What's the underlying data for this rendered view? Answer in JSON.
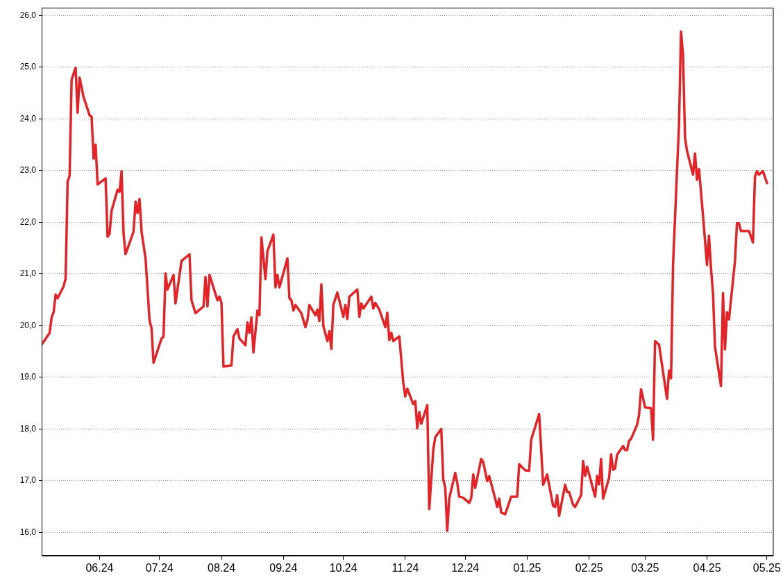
{
  "chart_data": {
    "type": "line",
    "x": [
      "2024-05-03",
      "2024-05-07",
      "2024-05-08",
      "2024-05-09",
      "2024-05-10",
      "2024-05-11",
      "2024-05-14",
      "2024-05-15",
      "2024-05-16",
      "2024-05-17",
      "2024-05-18",
      "2024-05-20",
      "2024-05-21",
      "2024-05-22",
      "2024-05-24",
      "2024-05-27",
      "2024-05-28",
      "2024-05-29",
      "2024-05-30",
      "2024-05-31",
      "2024-06-04",
      "2024-06-05",
      "2024-06-06",
      "2024-06-07",
      "2024-06-10",
      "2024-06-11",
      "2024-06-12",
      "2024-06-13",
      "2024-06-14",
      "2024-06-18",
      "2024-06-19",
      "2024-06-20",
      "2024-06-21",
      "2024-06-22",
      "2024-06-24",
      "2024-06-25",
      "2024-06-26",
      "2024-06-27",
      "2024-06-28",
      "2024-07-02",
      "2024-07-03",
      "2024-07-04",
      "2024-07-05",
      "2024-07-08",
      "2024-07-09",
      "2024-07-12",
      "2024-07-16",
      "2024-07-17",
      "2024-07-19",
      "2024-07-23",
      "2024-07-24",
      "2024-07-25",
      "2024-07-26",
      "2024-07-30",
      "2024-07-31",
      "2024-08-01",
      "2024-08-02",
      "2024-08-06",
      "2024-08-07",
      "2024-08-09",
      "2024-08-10",
      "2024-08-13",
      "2024-08-14",
      "2024-08-15",
      "2024-08-16",
      "2024-08-17",
      "2024-08-19",
      "2024-08-20",
      "2024-08-21",
      "2024-08-23",
      "2024-08-24",
      "2024-08-27",
      "2024-08-28",
      "2024-08-29",
      "2024-08-30",
      "2024-09-03",
      "2024-09-04",
      "2024-09-05",
      "2024-09-06",
      "2024-09-07",
      "2024-09-10",
      "2024-09-12",
      "2024-09-13",
      "2024-09-14",
      "2024-09-17",
      "2024-09-18",
      "2024-09-19",
      "2024-09-20",
      "2024-09-21",
      "2024-09-23",
      "2024-09-24",
      "2024-09-25",
      "2024-09-26",
      "2024-09-28",
      "2024-10-01",
      "2024-10-02",
      "2024-10-03",
      "2024-10-04",
      "2024-10-08",
      "2024-10-09",
      "2024-10-10",
      "2024-10-11",
      "2024-10-15",
      "2024-10-16",
      "2024-10-17",
      "2024-10-19",
      "2024-10-22",
      "2024-10-23",
      "2024-10-24",
      "2024-10-25",
      "2024-10-26",
      "2024-10-29",
      "2024-10-31",
      "2024-11-01",
      "2024-11-02",
      "2024-11-05",
      "2024-11-06",
      "2024-11-07",
      "2024-11-08",
      "2024-11-09",
      "2024-11-12",
      "2024-11-13",
      "2024-11-15",
      "2024-11-16",
      "2024-11-19",
      "2024-11-20",
      "2024-11-21",
      "2024-11-22",
      "2024-11-23",
      "2024-11-26",
      "2024-11-27",
      "2024-11-28",
      "2024-11-30",
      "2024-12-03",
      "2024-12-04",
      "2024-12-05",
      "2024-12-06",
      "2024-12-09",
      "2024-12-10",
      "2024-12-12",
      "2024-12-13",
      "2024-12-16",
      "2024-12-17",
      "2024-12-18",
      "2024-12-19",
      "2024-12-21",
      "2024-12-24",
      "2024-12-27",
      "2024-12-28",
      "2024-12-31",
      "2025-01-02",
      "2025-01-03",
      "2025-01-07",
      "2025-01-09",
      "2025-01-11",
      "2025-01-14",
      "2025-01-15",
      "2025-01-16",
      "2025-01-17",
      "2025-01-20",
      "2025-01-21",
      "2025-01-22",
      "2025-01-24",
      "2025-01-25",
      "2025-01-28",
      "2025-01-29",
      "2025-01-30",
      "2025-01-31",
      "2025-02-04",
      "2025-02-05",
      "2025-02-06",
      "2025-02-07",
      "2025-02-08",
      "2025-02-11",
      "2025-02-12",
      "2025-02-13",
      "2025-02-14",
      "2025-02-15",
      "2025-02-18",
      "2025-02-19",
      "2025-02-20",
      "2025-02-21",
      "2025-02-22",
      "2025-02-25",
      "2025-02-26",
      "2025-02-27",
      "2025-03-01",
      "2025-03-04",
      "2025-03-05",
      "2025-03-06",
      "2025-03-08",
      "2025-03-12",
      "2025-03-13",
      "2025-03-14",
      "2025-03-15",
      "2025-03-17",
      "2025-03-18",
      "2025-03-19",
      "2025-03-20",
      "2025-03-21",
      "2025-03-22",
      "2025-03-25",
      "2025-03-26",
      "2025-03-27",
      "2025-03-28",
      "2025-03-30",
      "2025-04-01",
      "2025-04-02",
      "2025-04-03",
      "2025-04-04",
      "2025-04-05",
      "2025-04-08",
      "2025-04-09",
      "2025-04-10",
      "2025-04-11",
      "2025-04-12",
      "2025-04-15",
      "2025-04-16",
      "2025-04-17",
      "2025-04-18",
      "2025-04-22",
      "2025-04-24",
      "2025-04-25",
      "2025-04-26",
      "2025-04-27",
      "2025-04-29",
      "2025-05-01"
    ],
    "series": [
      {
        "color": "#e52225",
        "values": [
          19.63,
          19.86,
          20.16,
          20.26,
          20.6,
          20.53,
          20.76,
          20.91,
          22.79,
          22.9,
          24.76,
          24.99,
          24.12,
          24.8,
          24.42,
          24.07,
          24.04,
          23.23,
          23.5,
          22.73,
          22.85,
          21.72,
          21.78,
          22.22,
          22.63,
          22.59,
          22.99,
          21.78,
          21.38,
          21.82,
          22.4,
          22.18,
          22.45,
          21.82,
          21.3,
          20.7,
          20.1,
          19.95,
          19.28,
          19.75,
          19.79,
          21.01,
          20.7,
          20.98,
          20.43,
          21.25,
          21.38,
          20.49,
          20.24,
          20.37,
          20.94,
          20.37,
          20.98,
          20.49,
          20.56,
          20.44,
          19.21,
          19.23,
          19.79,
          19.93,
          19.75,
          19.62,
          20.06,
          19.86,
          20.16,
          19.48,
          20.29,
          20.2,
          21.71,
          20.9,
          21.44,
          21.76,
          20.74,
          20.98,
          20.74,
          21.3,
          20.53,
          20.49,
          20.29,
          20.4,
          20.24,
          19.97,
          20.1,
          20.4,
          20.2,
          20.31,
          20.09,
          20.8,
          19.99,
          19.7,
          19.89,
          19.55,
          20.4,
          20.64,
          20.17,
          20.4,
          20.13,
          20.56,
          20.7,
          20.17,
          20.43,
          20.33,
          20.56,
          20.33,
          20.44,
          20.31,
          19.97,
          20.25,
          19.72,
          19.86,
          19.7,
          19.79,
          18.89,
          18.63,
          18.78,
          18.48,
          18.54,
          18.01,
          18.33,
          18.1,
          18.46,
          16.45,
          17.59,
          17.84,
          18.0,
          17.03,
          16.86,
          16.03,
          16.66,
          17.15,
          16.96,
          16.69,
          16.67,
          16.57,
          16.66,
          17.12,
          16.86,
          17.42,
          17.36,
          16.99,
          17.09,
          16.65,
          16.49,
          16.65,
          16.38,
          16.35,
          16.69,
          16.69,
          17.32,
          17.2,
          17.19,
          17.79,
          18.29,
          16.92,
          17.12,
          16.51,
          16.49,
          16.72,
          16.32,
          16.92,
          16.78,
          16.78,
          16.53,
          16.49,
          16.72,
          17.38,
          17.09,
          17.27,
          16.69,
          17.09,
          16.93,
          17.42,
          16.65,
          17.05,
          17.51,
          17.21,
          17.24,
          17.5,
          17.67,
          17.59,
          17.59,
          17.77,
          17.81,
          18.08,
          18.27,
          18.77,
          18.42,
          18.4,
          17.79,
          19.7,
          19.63,
          18.58,
          19.13,
          18.98,
          21.17,
          23.0,
          23.89,
          25.69,
          25.24,
          23.64,
          23.38,
          22.92,
          23.33,
          22.82,
          23.03,
          22.13,
          21.17,
          21.74,
          21.11,
          20.63,
          19.59,
          18.83,
          20.63,
          19.54,
          20.26,
          20.12,
          21.25,
          21.98,
          21.98,
          21.83,
          21.83,
          21.61,
          22.88,
          22.99,
          22.92,
          22.99,
          22.76
        ]
      }
    ],
    "xlim": [
      "2024-05-03",
      "2025-05-04"
    ],
    "xticks": [
      {
        "value": "2024-06-01",
        "label": "06.24"
      },
      {
        "value": "2024-07-01",
        "label": "07.24"
      },
      {
        "value": "2024-08-01",
        "label": "08.24"
      },
      {
        "value": "2024-09-01",
        "label": "09.24"
      },
      {
        "value": "2024-10-01",
        "label": "10.24"
      },
      {
        "value": "2024-11-01",
        "label": "11.24"
      },
      {
        "value": "2024-12-01",
        "label": "12.24"
      },
      {
        "value": "2025-01-01",
        "label": "01.25"
      },
      {
        "value": "2025-02-01",
        "label": "02.25"
      },
      {
        "value": "2025-03-01",
        "label": "03.25"
      },
      {
        "value": "2025-04-01",
        "label": "04.25"
      },
      {
        "value": "2025-05-01",
        "label": "05.25"
      }
    ],
    "ylim": [
      15.55,
      26.15
    ],
    "yticks": [
      {
        "value": 16,
        "label": "16,0"
      },
      {
        "value": 17,
        "label": "17,0"
      },
      {
        "value": 18,
        "label": "18,0"
      },
      {
        "value": 19,
        "label": "19,0"
      },
      {
        "value": 20,
        "label": "20,0"
      },
      {
        "value": 21,
        "label": "21,0"
      },
      {
        "value": 22,
        "label": "22,0"
      },
      {
        "value": 23,
        "label": "23,0"
      },
      {
        "value": 24,
        "label": "24,0"
      },
      {
        "value": 25,
        "label": "25,0"
      },
      {
        "value": 26,
        "label": "26,0"
      }
    ],
    "grid": "y",
    "legend": false,
    "marker": "none",
    "line_style": "solid"
  }
}
